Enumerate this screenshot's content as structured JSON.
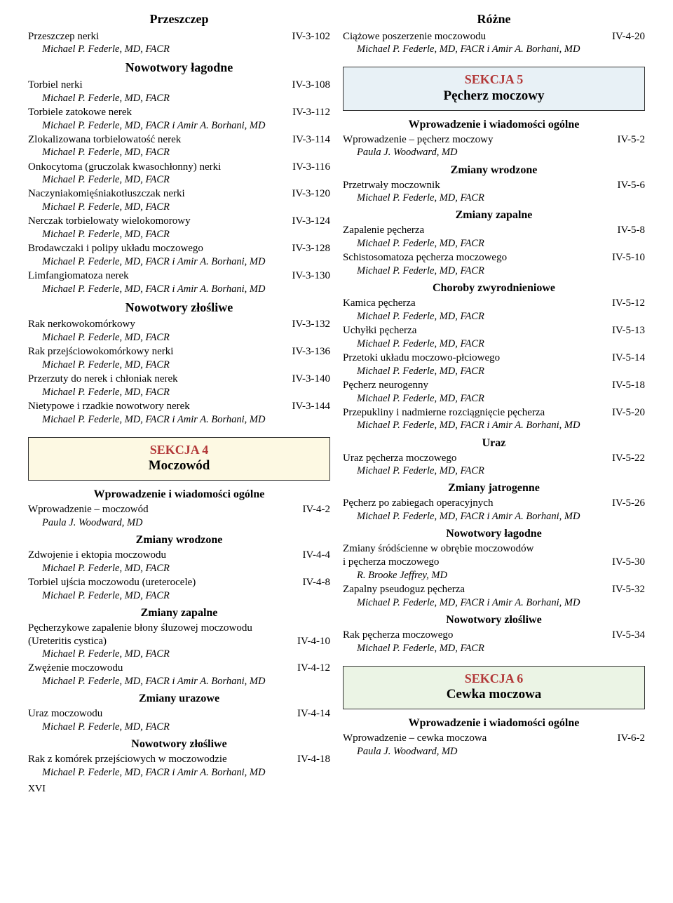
{
  "author_a": "Michael P. Federle, MD, FACR",
  "author_b": "Michael P. Federle, MD, FACR i Amir A. Borhani, MD",
  "author_c": "Paula J. Woodward, MD",
  "author_d": "R. Brooke Jeffrey, MD",
  "page_label": "XVI",
  "colors": {
    "section_label": "#b23838",
    "box_yellow": "#fdf9e3",
    "box_blue": "#e8f1f6",
    "box_green": "#ebf4e5",
    "text": "#000000",
    "bg": "#ffffff",
    "border": "#333333"
  },
  "typography": {
    "body_font": "Times New Roman",
    "body_size_pt": 11,
    "section_title_pt": 14,
    "subsection_title_pt": 12,
    "section_box_label_pt": 14,
    "section_box_name_pt": 15,
    "author_italic": true
  },
  "left": [
    {
      "type": "section",
      "text": "Przeszczep"
    },
    {
      "type": "entry",
      "title": "Przeszczep nerki",
      "page": "IV-3-102",
      "author": "a"
    },
    {
      "type": "section",
      "text": "Nowotwory łagodne"
    },
    {
      "type": "entry",
      "title": "Torbiel nerki",
      "page": "IV-3-108",
      "author": "a"
    },
    {
      "type": "entry",
      "title": "Torbiele zatokowe nerek",
      "page": "IV-3-112",
      "author": "b"
    },
    {
      "type": "entry",
      "title": "Zlokalizowana torbielowatość nerek",
      "page": "IV-3-114",
      "author": "a"
    },
    {
      "type": "entry",
      "title": "Onkocytoma (gruczolak kwasochłonny) nerki",
      "page": "IV-3-116",
      "author": "a"
    },
    {
      "type": "entry",
      "title": "Naczyniakomięśniakotłuszczak nerki",
      "page": "IV-3-120",
      "author": "a"
    },
    {
      "type": "entry",
      "title": "Nerczak torbielowaty wielokomorowy",
      "page": "IV-3-124",
      "author": "a"
    },
    {
      "type": "entry",
      "title": "Brodawczaki i polipy układu moczowego",
      "page": "IV-3-128",
      "author": "b"
    },
    {
      "type": "entry",
      "title": "Limfangiomatoza nerek",
      "page": "IV-3-130",
      "author": "b"
    },
    {
      "type": "section",
      "text": "Nowotwory złośliwe"
    },
    {
      "type": "entry",
      "title": "Rak nerkowokomórkowy",
      "page": "IV-3-132",
      "author": "a"
    },
    {
      "type": "entry",
      "title": "Rak przejściowokomórkowy nerki",
      "page": "IV-3-136",
      "author": "a"
    },
    {
      "type": "entry",
      "title": "Przerzuty do nerek i chłoniak nerek",
      "page": "IV-3-140",
      "author": "a"
    },
    {
      "type": "entry",
      "title": "Nietypowe i rzadkie nowotwory nerek",
      "page": "IV-3-144",
      "author": "b"
    },
    {
      "type": "box",
      "color": "yellow",
      "label": "SEKCJA 4",
      "name": "Moczowód"
    },
    {
      "type": "subsection",
      "text": "Wprowadzenie i wiadomości ogólne"
    },
    {
      "type": "entry",
      "title": "Wprowadzenie – moczowód",
      "page": "IV-4-2",
      "author": "c"
    },
    {
      "type": "subsection",
      "text": "Zmiany wrodzone"
    },
    {
      "type": "entry",
      "title": "Zdwojenie i ektopia moczowodu",
      "page": "IV-4-4",
      "author": "a"
    },
    {
      "type": "entry",
      "title": "Torbiel ujścia moczowodu (ureterocele)",
      "page": "IV-4-8",
      "author": "a"
    },
    {
      "type": "subsection",
      "text": "Zmiany zapalne"
    },
    {
      "type": "entry",
      "title": "Pęcherzykowe zapalenie błony śluzowej moczowodu (Ureteritis cystica)",
      "title2": "(Ureteritis cystica)",
      "title1": "Pęcherzykowe zapalenie błony śluzowej moczowodu",
      "page": "IV-4-10",
      "author": "a",
      "two_line": true
    },
    {
      "type": "entry",
      "title": "Zwężenie moczowodu",
      "page": "IV-4-12",
      "author": "b"
    },
    {
      "type": "subsection",
      "text": "Zmiany urazowe"
    },
    {
      "type": "entry",
      "title": "Uraz moczowodu",
      "page": "IV-4-14",
      "author": "a"
    },
    {
      "type": "subsection",
      "text": "Nowotwory złośliwe"
    },
    {
      "type": "entry",
      "title": "Rak z komórek przejściowych w moczowodzie",
      "page": "IV-4-18",
      "author": "b"
    }
  ],
  "right": [
    {
      "type": "section",
      "text": "Różne"
    },
    {
      "type": "entry",
      "title": "Ciążowe poszerzenie moczowodu",
      "page": "IV-4-20",
      "author": "b"
    },
    {
      "type": "box",
      "color": "blue",
      "label": "SEKCJA 5",
      "name": "Pęcherz moczowy"
    },
    {
      "type": "subsection",
      "text": "Wprowadzenie i wiadomości ogólne"
    },
    {
      "type": "entry",
      "title": "Wprowadzenie – pęcherz moczowy",
      "page": "IV-5-2",
      "author": "c"
    },
    {
      "type": "subsection",
      "text": "Zmiany wrodzone"
    },
    {
      "type": "entry",
      "title": "Przetrwały moczownik",
      "page": "IV-5-6",
      "author": "a"
    },
    {
      "type": "subsection",
      "text": "Zmiany zapalne"
    },
    {
      "type": "entry",
      "title": "Zapalenie pęcherza",
      "page": "IV-5-8",
      "author": "a"
    },
    {
      "type": "entry",
      "title": "Schistosomatoza pęcherza moczowego",
      "page": "IV-5-10",
      "author": "a"
    },
    {
      "type": "subsection",
      "text": "Choroby zwyrodnieniowe"
    },
    {
      "type": "entry",
      "title": "Kamica pęcherza",
      "page": "IV-5-12",
      "author": "a"
    },
    {
      "type": "entry",
      "title": "Uchyłki pęcherza",
      "page": "IV-5-13",
      "author": "a"
    },
    {
      "type": "entry",
      "title": "Przetoki układu moczowo-płciowego",
      "page": "IV-5-14",
      "author": "a"
    },
    {
      "type": "entry",
      "title": "Pęcherz neurogenny",
      "page": "IV-5-18",
      "author": "a"
    },
    {
      "type": "entry",
      "title": "Przepukliny i nadmierne rozciągnięcie pęcherza",
      "page": "IV-5-20",
      "author": "b"
    },
    {
      "type": "subsection",
      "text": "Uraz"
    },
    {
      "type": "entry",
      "title": "Uraz pęcherza moczowego",
      "page": "IV-5-22",
      "author": "a"
    },
    {
      "type": "subsection",
      "text": "Zmiany jatrogenne"
    },
    {
      "type": "entry",
      "title": "Pęcherz po zabiegach operacyjnych",
      "page": "IV-5-26",
      "author": "b"
    },
    {
      "type": "subsection",
      "text": "Nowotwory łagodne"
    },
    {
      "type": "entry",
      "title1": "Zmiany śródścienne w obrębie moczowodów",
      "title2": "i pęcherza moczowego",
      "page": "IV-5-30",
      "author": "d",
      "two_line": true
    },
    {
      "type": "entry",
      "title": "Zapalny pseudoguz pęcherza",
      "page": "IV-5-32",
      "author": "b"
    },
    {
      "type": "subsection",
      "text": "Nowotwory złośliwe"
    },
    {
      "type": "entry",
      "title": "Rak pęcherza moczowego",
      "page": "IV-5-34",
      "author": "a"
    },
    {
      "type": "box",
      "color": "green",
      "label": "SEKCJA 6",
      "name": "Cewka moczowa"
    },
    {
      "type": "subsection",
      "text": "Wprowadzenie i wiadomości ogólne"
    },
    {
      "type": "entry",
      "title": "Wprowadzenie – cewka moczowa",
      "page": "IV-6-2",
      "author": "c"
    }
  ]
}
